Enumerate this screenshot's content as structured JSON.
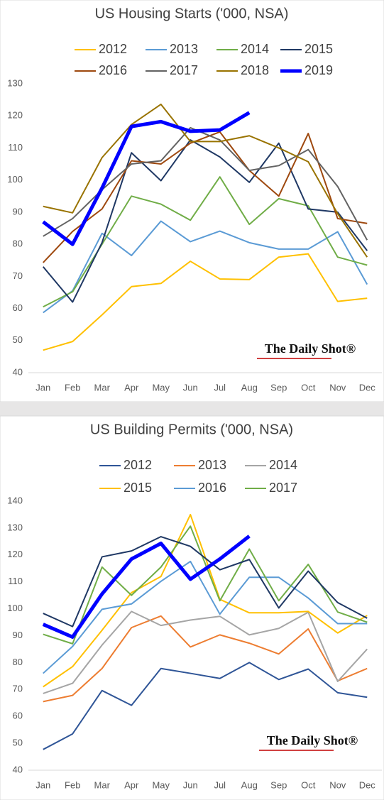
{
  "chart_data": [
    {
      "type": "line",
      "title": "US Housing Starts ('000, NSA)",
      "categories": [
        "Jan",
        "Feb",
        "Mar",
        "Apr",
        "May",
        "Jun",
        "Jul",
        "Aug",
        "Sep",
        "Oct",
        "Nov",
        "Dec"
      ],
      "ylim": [
        40,
        130
      ],
      "yticks": [
        40,
        50,
        60,
        70,
        80,
        90,
        100,
        110,
        120,
        130
      ],
      "grid": false,
      "annotation": "The Daily Shot®",
      "series": [
        {
          "name": "2012",
          "color": "#ffc000",
          "values": [
            47,
            49.7,
            58,
            66.8,
            67.8,
            74.7,
            69.2,
            69,
            76,
            77,
            62.2,
            63.2
          ]
        },
        {
          "name": "2013",
          "color": "#5b9bd5",
          "values": [
            58.7,
            65.5,
            83.4,
            76.5,
            87.2,
            80.8,
            84.1,
            80.5,
            78.5,
            78.5,
            83.9,
            67.5
          ]
        },
        {
          "name": "2014",
          "color": "#70ad47",
          "values": [
            60.5,
            65.2,
            80,
            95,
            92.5,
            87.5,
            101,
            86.2,
            94.2,
            92,
            76,
            73.5
          ]
        },
        {
          "name": "2015",
          "color": "#1f3864",
          "values": [
            73,
            62,
            80.5,
            108.5,
            99.8,
            112.5,
            107.2,
            99.3,
            111.5,
            91,
            90,
            78
          ]
        },
        {
          "name": "2016",
          "color": "#9e480e",
          "values": [
            74.3,
            84,
            91,
            106,
            105,
            111.5,
            115,
            103,
            95,
            114.5,
            88,
            86.5
          ]
        },
        {
          "name": "2017",
          "color": "#636363",
          "values": [
            82.5,
            88,
            97,
            105,
            106,
            116.3,
            112.5,
            103,
            104.5,
            109.5,
            98,
            81.3
          ]
        },
        {
          "name": "2018",
          "color": "#997300",
          "values": [
            91.8,
            89.8,
            107,
            117.3,
            123.6,
            112,
            112,
            113.8,
            110,
            105.7,
            89.5,
            76
          ]
        },
        {
          "name": "2019",
          "color": "#0000ff",
          "width": 5,
          "values": [
            87,
            80,
            97.5,
            116.7,
            118.2,
            115.2,
            115.6,
            121,
            null,
            null,
            null,
            null
          ]
        }
      ]
    },
    {
      "type": "line",
      "title": "US Building Permits ('000, NSA)",
      "categories": [
        "Jan",
        "Feb",
        "Mar",
        "Apr",
        "May",
        "Jun",
        "Jul",
        "Aug",
        "Sep",
        "Oct",
        "Nov",
        "Dec"
      ],
      "ylim": [
        40,
        140
      ],
      "yticks": [
        40,
        50,
        60,
        70,
        80,
        90,
        100,
        110,
        120,
        130,
        140
      ],
      "grid": false,
      "annotation": "The Daily Shot®",
      "series": [
        {
          "name": "2012",
          "color": "#2f5597",
          "values": [
            47.7,
            53.5,
            69.6,
            64.1,
            77.8,
            76,
            74.1,
            80,
            73.7,
            77.6,
            68.8,
            67.1
          ]
        },
        {
          "name": "2013",
          "color": "#ed7d31",
          "values": [
            65.5,
            67.8,
            77.8,
            93,
            97.3,
            85.8,
            90.3,
            87.2,
            83.2,
            92.5,
            73.2,
            77.8
          ]
        },
        {
          "name": "2014",
          "color": "#a5a5a5",
          "values": [
            68.5,
            72.3,
            86.5,
            99,
            93.8,
            95.8,
            97.2,
            90.3,
            92.7,
            98.7,
            73,
            85
          ]
        },
        {
          "name": "2015",
          "color": "#ffc000",
          "values": [
            71,
            78.5,
            92,
            106,
            112,
            135,
            103.5,
            98.5,
            98.5,
            99,
            91,
            97.5
          ]
        },
        {
          "name": "2016",
          "color": "#5b9bd5",
          "values": [
            76,
            86,
            99.8,
            101.8,
            110.2,
            117.6,
            98,
            111.7,
            111.7,
            104,
            94.5,
            94.5
          ]
        },
        {
          "name": "2017",
          "color": "#70ad47",
          "values": [
            90.5,
            87,
            115.5,
            105,
            115.5,
            130.7,
            103,
            122.2,
            103,
            116.5,
            98.8,
            95
          ]
        },
        {
          "color": "#1f3864",
          "values": [
            98.3,
            93.4,
            119.3,
            121.5,
            126.8,
            123.2,
            114.5,
            118.3,
            100.3,
            114,
            102.3,
            96.5
          ]
        },
        {
          "color": "#0000ff",
          "width": 5,
          "values": [
            94.2,
            89.5,
            105.5,
            118.5,
            124.3,
            111,
            118.5,
            127,
            null,
            null,
            null,
            null
          ]
        }
      ]
    }
  ]
}
